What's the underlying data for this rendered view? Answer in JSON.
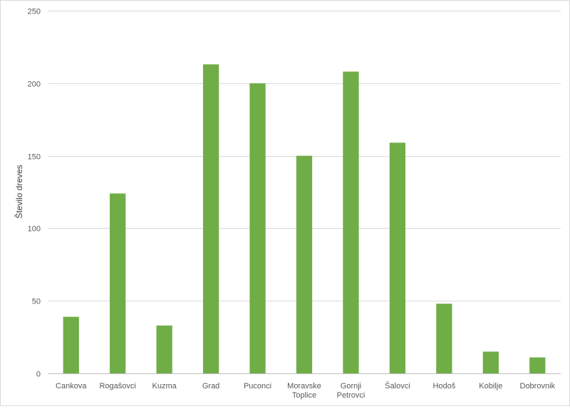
{
  "chart_data": {
    "type": "bar",
    "title": "",
    "xlabel": "",
    "ylabel": "Število dreves",
    "categories": [
      [
        "Cankova"
      ],
      [
        "Rogašovci"
      ],
      [
        "Kuzma"
      ],
      [
        "Grad"
      ],
      [
        "Puconci"
      ],
      [
        "Moravske",
        "Toplice"
      ],
      [
        "Gornji",
        "Petrovci"
      ],
      [
        "Šalovci"
      ],
      [
        "Hodoš"
      ],
      [
        "Kobilje"
      ],
      [
        "Dobrovnik"
      ]
    ],
    "values": [
      39,
      124,
      33,
      213,
      200,
      150,
      208,
      159,
      48,
      15,
      11
    ],
    "ylim": [
      0,
      250
    ],
    "yticks": [
      0,
      50,
      100,
      150,
      200,
      250
    ],
    "grid": true,
    "legend": "none",
    "colors": {
      "bar": "#70ad47",
      "grid": "#d9d9d9",
      "text": "#595959"
    }
  }
}
